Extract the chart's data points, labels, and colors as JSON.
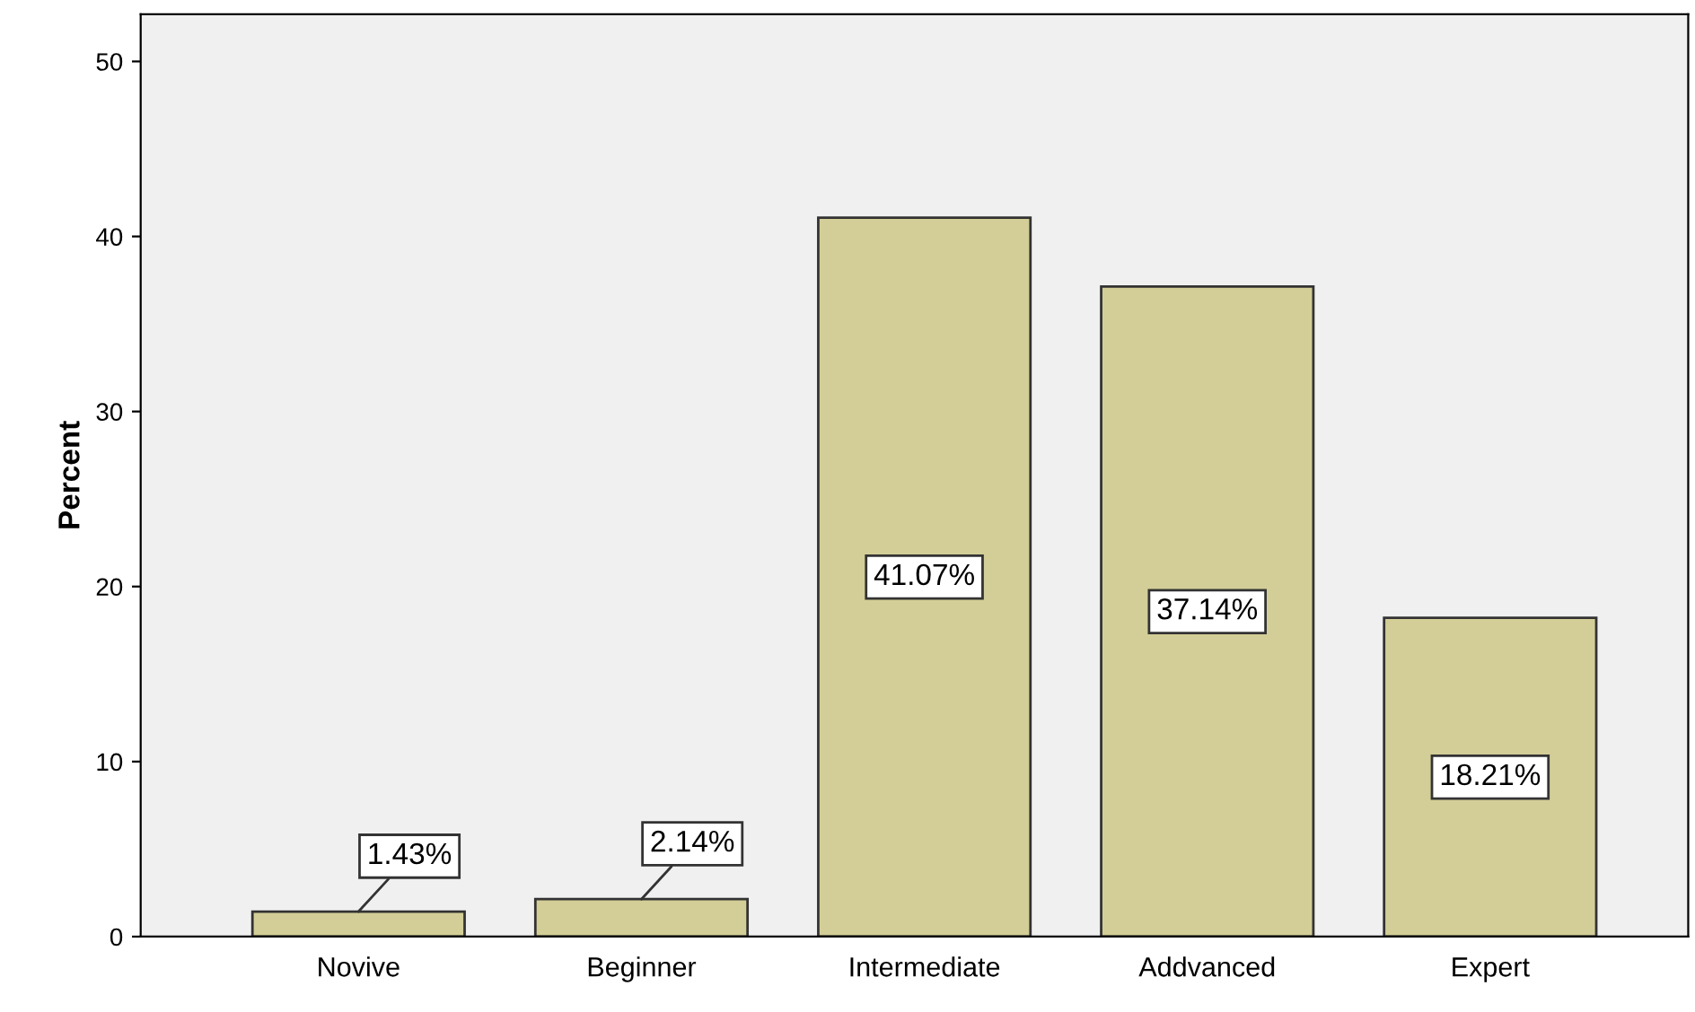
{
  "chart_data": {
    "type": "bar",
    "ylabel": "Percent",
    "categories": [
      "Novive",
      "Beginner",
      "Intermediate",
      "Addvanced",
      "Expert"
    ],
    "values": [
      1.43,
      2.14,
      41.07,
      37.14,
      18.21
    ],
    "value_labels": [
      "1.43%",
      "2.14%",
      "41.07%",
      "37.14%",
      "18.21%"
    ],
    "color": "#d3ce97",
    "ylim": [
      0,
      52.7
    ],
    "yticks": [
      0,
      10,
      20,
      30,
      40,
      50
    ],
    "grid": false,
    "legend": false
  }
}
